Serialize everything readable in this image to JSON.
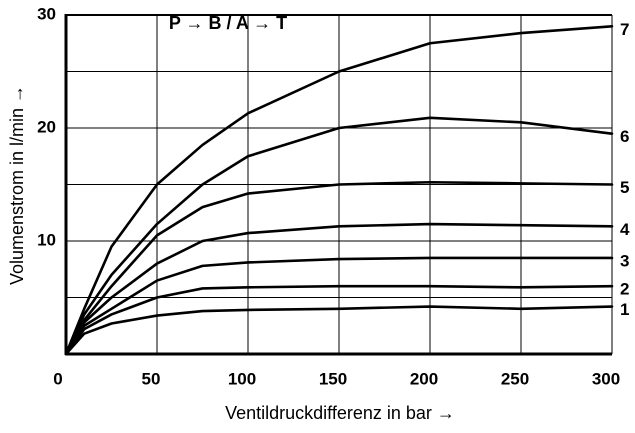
{
  "chart_data": {
    "type": "line",
    "title": "P → B / A → T",
    "x_label": "Ventildruckdifferenz in bar →",
    "y_label": "Volumenstrom in l/min →",
    "x": [
      0,
      10,
      25,
      50,
      75,
      100,
      150,
      200,
      250,
      300
    ],
    "series": [
      {
        "name": "1",
        "color": "#000000",
        "values": [
          0,
          1.8,
          2.7,
          3.4,
          3.8,
          3.9,
          4.0,
          4.2,
          4.0,
          4.2
        ]
      },
      {
        "name": "2",
        "color": "#000000",
        "values": [
          0,
          2.2,
          3.5,
          5.0,
          5.8,
          5.9,
          6.0,
          6.0,
          5.9,
          6.0
        ]
      },
      {
        "name": "3",
        "color": "#000000",
        "values": [
          0,
          2.5,
          4.0,
          6.5,
          7.8,
          8.1,
          8.4,
          8.5,
          8.5,
          8.5
        ]
      },
      {
        "name": "4",
        "color": "#000000",
        "values": [
          0,
          2.8,
          5.0,
          8.0,
          10.0,
          10.7,
          11.3,
          11.5,
          11.4,
          11.3
        ]
      },
      {
        "name": "5",
        "color": "#000000",
        "values": [
          0,
          3.0,
          6.0,
          10.5,
          13.0,
          14.2,
          15.0,
          15.2,
          15.1,
          15.0
        ]
      },
      {
        "name": "6",
        "color": "#000000",
        "values": [
          0,
          3.5,
          7.0,
          11.5,
          15.0,
          17.5,
          20.0,
          20.9,
          20.5,
          19.5
        ]
      },
      {
        "name": "7",
        "color": "#000000",
        "values": [
          0,
          4.0,
          9.5,
          15.0,
          18.5,
          21.3,
          25.0,
          27.5,
          28.4,
          29.0
        ]
      }
    ],
    "xlim": [
      0,
      300
    ],
    "xticks": [
      0,
      50,
      100,
      150,
      200,
      250,
      300
    ],
    "ylim": [
      0,
      30
    ],
    "yticks": [
      10,
      20,
      30
    ],
    "y_minor_grid": [
      5,
      15,
      25
    ],
    "grid": true
  }
}
